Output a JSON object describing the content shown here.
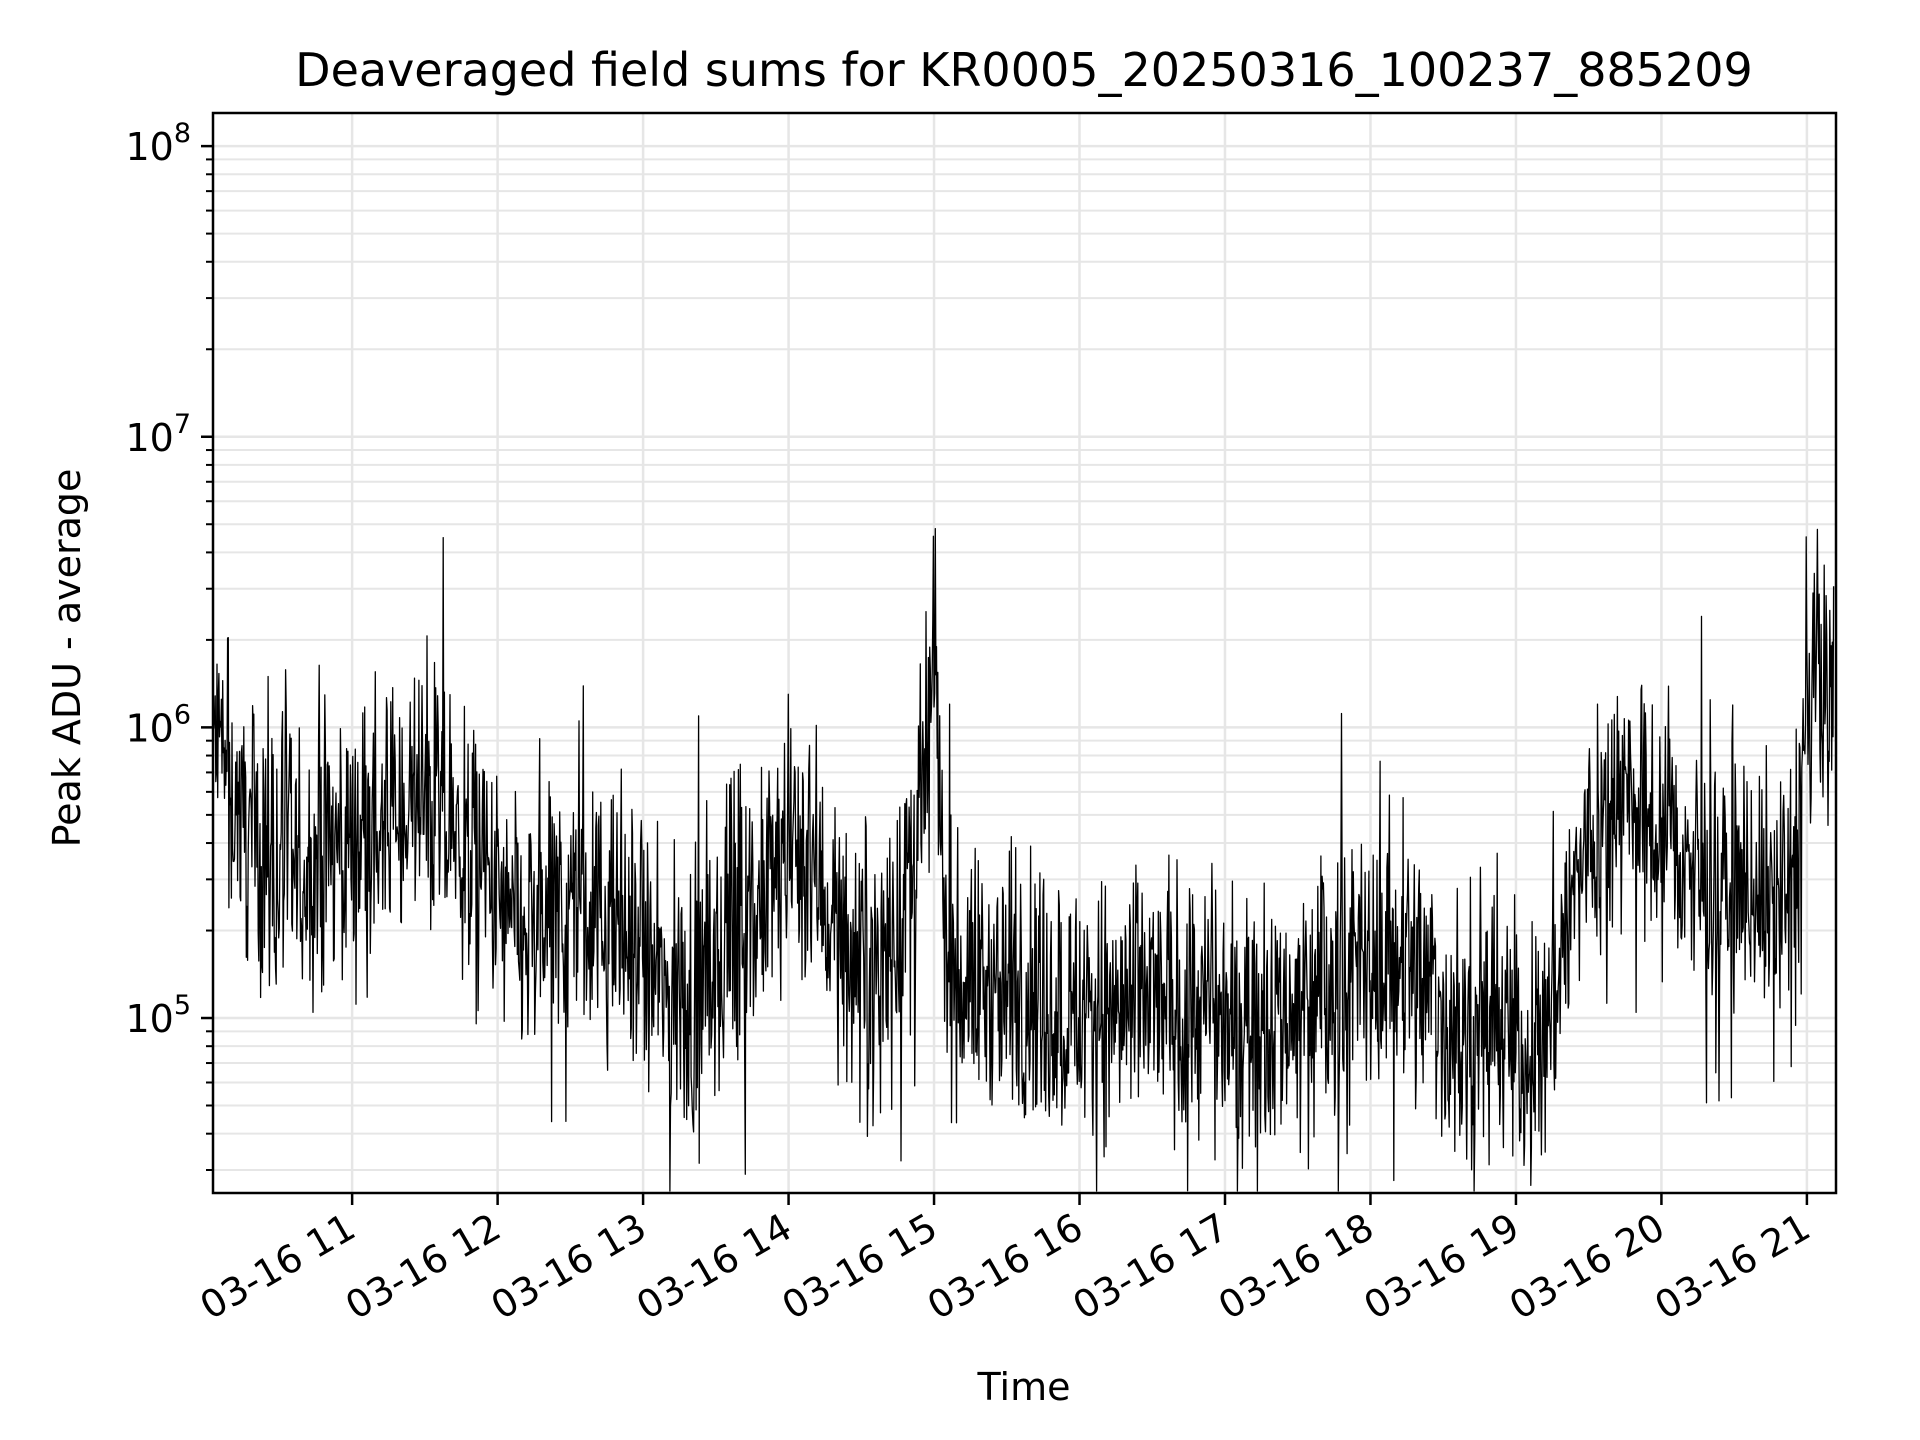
{
  "chart_data": {
    "type": "line",
    "title": "Deaveraged field sums for KR0005_20250316_100237_885209",
    "xlabel": "Time",
    "ylabel": "Peak ADU - average",
    "y_scale": "log",
    "ylim": [
      25000,
      130000000
    ],
    "xlim": [
      "2025-03-16T10:02:37",
      "2025-03-16T21:12:00"
    ],
    "grid": true,
    "line_color": "#000000",
    "grid_color": "#e6e6e6",
    "x_ticks": [
      {
        "label": "03-16 11",
        "time": "2025-03-16T11:00"
      },
      {
        "label": "03-16 12",
        "time": "2025-03-16T12:00"
      },
      {
        "label": "03-16 13",
        "time": "2025-03-16T13:00"
      },
      {
        "label": "03-16 14",
        "time": "2025-03-16T14:00"
      },
      {
        "label": "03-16 15",
        "time": "2025-03-16T15:00"
      },
      {
        "label": "03-16 16",
        "time": "2025-03-16T16:00"
      },
      {
        "label": "03-16 17",
        "time": "2025-03-16T17:00"
      },
      {
        "label": "03-16 18",
        "time": "2025-03-16T18:00"
      },
      {
        "label": "03-16 19",
        "time": "2025-03-16T19:00"
      },
      {
        "label": "03-16 20",
        "time": "2025-03-16T20:00"
      },
      {
        "label": "03-16 21",
        "time": "2025-03-16T21:00"
      }
    ],
    "y_ticks": [
      {
        "base": "10",
        "exp": "5",
        "value": 100000
      },
      {
        "base": "10",
        "exp": "6",
        "value": 1000000
      },
      {
        "base": "10",
        "exp": "7",
        "value": 10000000
      },
      {
        "base": "10",
        "exp": "8",
        "value": 100000000
      }
    ],
    "series": [
      {
        "x": [
          "2025-03-16T10:03",
          "2025-03-16T10:10",
          "2025-03-16T10:20",
          "2025-03-16T10:30",
          "2025-03-16T10:40",
          "2025-03-16T10:50",
          "2025-03-16T11:00",
          "2025-03-16T11:10",
          "2025-03-16T11:20",
          "2025-03-16T11:30",
          "2025-03-16T11:40",
          "2025-03-16T11:50",
          "2025-03-16T12:00",
          "2025-03-16T12:10",
          "2025-03-16T12:20",
          "2025-03-16T12:30",
          "2025-03-16T12:40",
          "2025-03-16T12:50",
          "2025-03-16T13:00",
          "2025-03-16T13:10",
          "2025-03-16T13:20",
          "2025-03-16T13:30",
          "2025-03-16T13:40",
          "2025-03-16T13:50",
          "2025-03-16T14:00",
          "2025-03-16T14:10",
          "2025-03-16T14:20",
          "2025-03-16T14:30",
          "2025-03-16T14:40",
          "2025-03-16T14:50",
          "2025-03-16T14:56",
          "2025-03-16T15:00",
          "2025-03-16T15:05",
          "2025-03-16T15:10",
          "2025-03-16T15:20",
          "2025-03-16T15:30",
          "2025-03-16T15:40",
          "2025-03-16T15:50",
          "2025-03-16T16:00",
          "2025-03-16T16:10",
          "2025-03-16T16:20",
          "2025-03-16T16:30",
          "2025-03-16T16:40",
          "2025-03-16T16:50",
          "2025-03-16T17:00",
          "2025-03-16T17:10",
          "2025-03-16T17:20",
          "2025-03-16T17:30",
          "2025-03-16T17:40",
          "2025-03-16T17:50",
          "2025-03-16T18:00",
          "2025-03-16T18:10",
          "2025-03-16T18:20",
          "2025-03-16T18:30",
          "2025-03-16T18:40",
          "2025-03-16T18:50",
          "2025-03-16T19:00",
          "2025-03-16T19:10",
          "2025-03-16T19:20",
          "2025-03-16T19:30",
          "2025-03-16T19:40",
          "2025-03-16T19:50",
          "2025-03-16T20:00",
          "2025-03-16T20:10",
          "2025-03-16T20:20",
          "2025-03-16T20:30",
          "2025-03-16T20:40",
          "2025-03-16T20:50",
          "2025-03-16T20:55",
          "2025-03-16T21:00",
          "2025-03-16T21:05",
          "2025-03-16T21:08",
          "2025-03-16T21:11"
        ],
        "y": [
          900000,
          600000,
          400000,
          350000,
          300000,
          380000,
          420000,
          450000,
          500000,
          550000,
          450000,
          350000,
          250000,
          180000,
          200000,
          250000,
          220000,
          200000,
          150000,
          120000,
          110000,
          140000,
          180000,
          250000,
          400000,
          350000,
          200000,
          150000,
          180000,
          250000,
          600000,
          1800000,
          150000,
          140000,
          130000,
          125000,
          120000,
          110000,
          105000,
          100000,
          110000,
          115000,
          110000,
          105000,
          100000,
          100000,
          105000,
          110000,
          120000,
          130000,
          140000,
          180000,
          150000,
          100000,
          80000,
          110000,
          80000,
          70000,
          200000,
          400000,
          600000,
          500000,
          450000,
          350000,
          250000,
          300000,
          280000,
          250000,
          350000,
          1000000,
          1500000,
          1400000,
          1300000
        ]
      }
    ]
  }
}
